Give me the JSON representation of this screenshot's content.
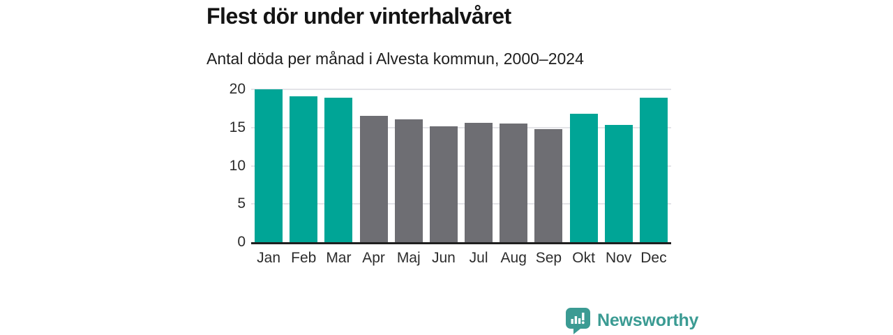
{
  "header": {
    "title": "Flest dör under vinterhalvåret",
    "subtitle": "Antal döda per månad i Alvesta kommun, 2000–2024"
  },
  "chart_data": {
    "type": "bar",
    "title": "Flest dör under vinterhalvåret",
    "subtitle": "Antal döda per månad i Alvesta kommun, 2000–2024",
    "categories": [
      "Jan",
      "Feb",
      "Mar",
      "Apr",
      "Maj",
      "Jun",
      "Jul",
      "Aug",
      "Sep",
      "Okt",
      "Nov",
      "Dec"
    ],
    "values": [
      20.0,
      19.1,
      18.9,
      16.5,
      16.1,
      15.2,
      15.6,
      15.5,
      14.8,
      16.8,
      15.3,
      18.9
    ],
    "highlighted": [
      true,
      true,
      true,
      false,
      false,
      false,
      false,
      false,
      false,
      true,
      true,
      true
    ],
    "xlabel": "",
    "ylabel": "",
    "ylim": [
      0,
      20
    ],
    "yticks": [
      0,
      5,
      10,
      15,
      20
    ],
    "grid": true,
    "legend": "none",
    "colors": {
      "highlight": "#00a596",
      "base": "#6e6e73",
      "axis": "#1f1f1f",
      "gridline": "#e4e4e8",
      "tick_text": "#2c2c2c"
    }
  },
  "footer": {
    "brand": "Newsworthy",
    "brand_color": "#3b9b93",
    "logo_icon": "bar-chart-speech-bubble-icon"
  }
}
